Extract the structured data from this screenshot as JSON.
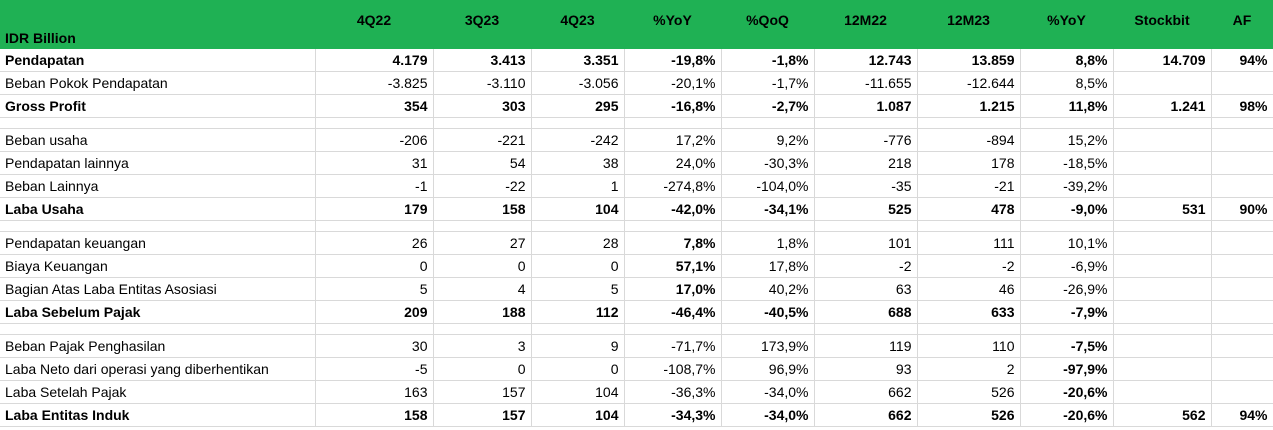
{
  "header": [
    "IDR Billion",
    "4Q22",
    "3Q23",
    "4Q23",
    "%YoY",
    "%QoQ",
    "12M22",
    "12M23",
    "%YoY",
    "Stockbit",
    "AF"
  ],
  "rows": [
    {
      "type": "data",
      "bold": true,
      "cells": [
        "Pendapatan",
        "4.179",
        "3.413",
        "3.351",
        "-19,8%",
        "-1,8%",
        "12.743",
        "13.859",
        "8,8%",
        "14.709",
        "94%"
      ]
    },
    {
      "type": "data",
      "bold": false,
      "cells": [
        "Beban Pokok Pendapatan",
        "-3.825",
        "-3.110",
        "-3.056",
        "-20,1%",
        "-1,7%",
        "-11.655",
        "-12.644",
        "8,5%",
        "",
        ""
      ]
    },
    {
      "type": "data",
      "bold": true,
      "cells": [
        "Gross Profit",
        "354",
        "303",
        "295",
        "-16,8%",
        "-2,7%",
        "1.087",
        "1.215",
        "11,8%",
        "1.241",
        "98%"
      ]
    },
    {
      "type": "spacer"
    },
    {
      "type": "data",
      "bold": false,
      "cells": [
        "Beban usaha",
        "-206",
        "-221",
        "-242",
        "17,2%",
        "9,2%",
        "-776",
        "-894",
        "15,2%",
        "",
        ""
      ]
    },
    {
      "type": "data",
      "bold": false,
      "cells": [
        "Pendapatan lainnya",
        "31",
        "54",
        "38",
        "24,0%",
        "-30,3%",
        "218",
        "178",
        "-18,5%",
        "",
        ""
      ]
    },
    {
      "type": "data",
      "bold": false,
      "cells": [
        "Beban Lainnya",
        "-1",
        "-22",
        "1",
        "-274,8%",
        "-104,0%",
        "-35",
        "-21",
        "-39,2%",
        "",
        ""
      ]
    },
    {
      "type": "data",
      "bold": true,
      "cells": [
        "Laba Usaha",
        "179",
        "158",
        "104",
        "-42,0%",
        "-34,1%",
        "525",
        "478",
        "-9,0%",
        "531",
        "90%"
      ]
    },
    {
      "type": "spacer"
    },
    {
      "type": "data",
      "bold": false,
      "boldCols": [
        4
      ],
      "cells": [
        "Pendapatan keuangan",
        "26",
        "27",
        "28",
        "7,8%",
        "1,8%",
        "101",
        "111",
        "10,1%",
        "",
        ""
      ]
    },
    {
      "type": "data",
      "bold": false,
      "boldCols": [
        4
      ],
      "cells": [
        "Biaya Keuangan",
        "0",
        "0",
        "0",
        "57,1%",
        "17,8%",
        "-2",
        "-2",
        "-6,9%",
        "",
        ""
      ]
    },
    {
      "type": "data",
      "bold": false,
      "boldCols": [
        4
      ],
      "cells": [
        "Bagian Atas Laba Entitas Asosiasi",
        "5",
        "4",
        "5",
        "17,0%",
        "40,2%",
        "63",
        "46",
        "-26,9%",
        "",
        ""
      ]
    },
    {
      "type": "data",
      "bold": true,
      "cells": [
        "Laba Sebelum Pajak",
        "209",
        "188",
        "112",
        "-46,4%",
        "-40,5%",
        "688",
        "633",
        "-7,9%",
        "",
        ""
      ]
    },
    {
      "type": "spacer"
    },
    {
      "type": "data",
      "bold": false,
      "boldCols": [
        8
      ],
      "cells": [
        "Beban Pajak Penghasilan",
        "30",
        "3",
        "9",
        "-71,7%",
        "173,9%",
        "119",
        "110",
        "-7,5%",
        "",
        ""
      ]
    },
    {
      "type": "data",
      "bold": false,
      "boldCols": [
        8
      ],
      "cells": [
        "Laba Neto dari operasi yang diberhentikan",
        "-5",
        "0",
        "0",
        "-108,7%",
        "96,9%",
        "93",
        "2",
        "-97,9%",
        "",
        ""
      ]
    },
    {
      "type": "data",
      "bold": false,
      "boldCols": [
        8
      ],
      "cells": [
        "Laba Setelah Pajak",
        "163",
        "157",
        "104",
        "-36,3%",
        "-34,0%",
        "662",
        "526",
        "-20,6%",
        "",
        ""
      ]
    },
    {
      "type": "data",
      "bold": true,
      "cells": [
        "Laba Entitas Induk",
        "158",
        "157",
        "104",
        "-34,3%",
        "-34,0%",
        "662",
        "526",
        "-20,6%",
        "562",
        "94%"
      ]
    }
  ]
}
